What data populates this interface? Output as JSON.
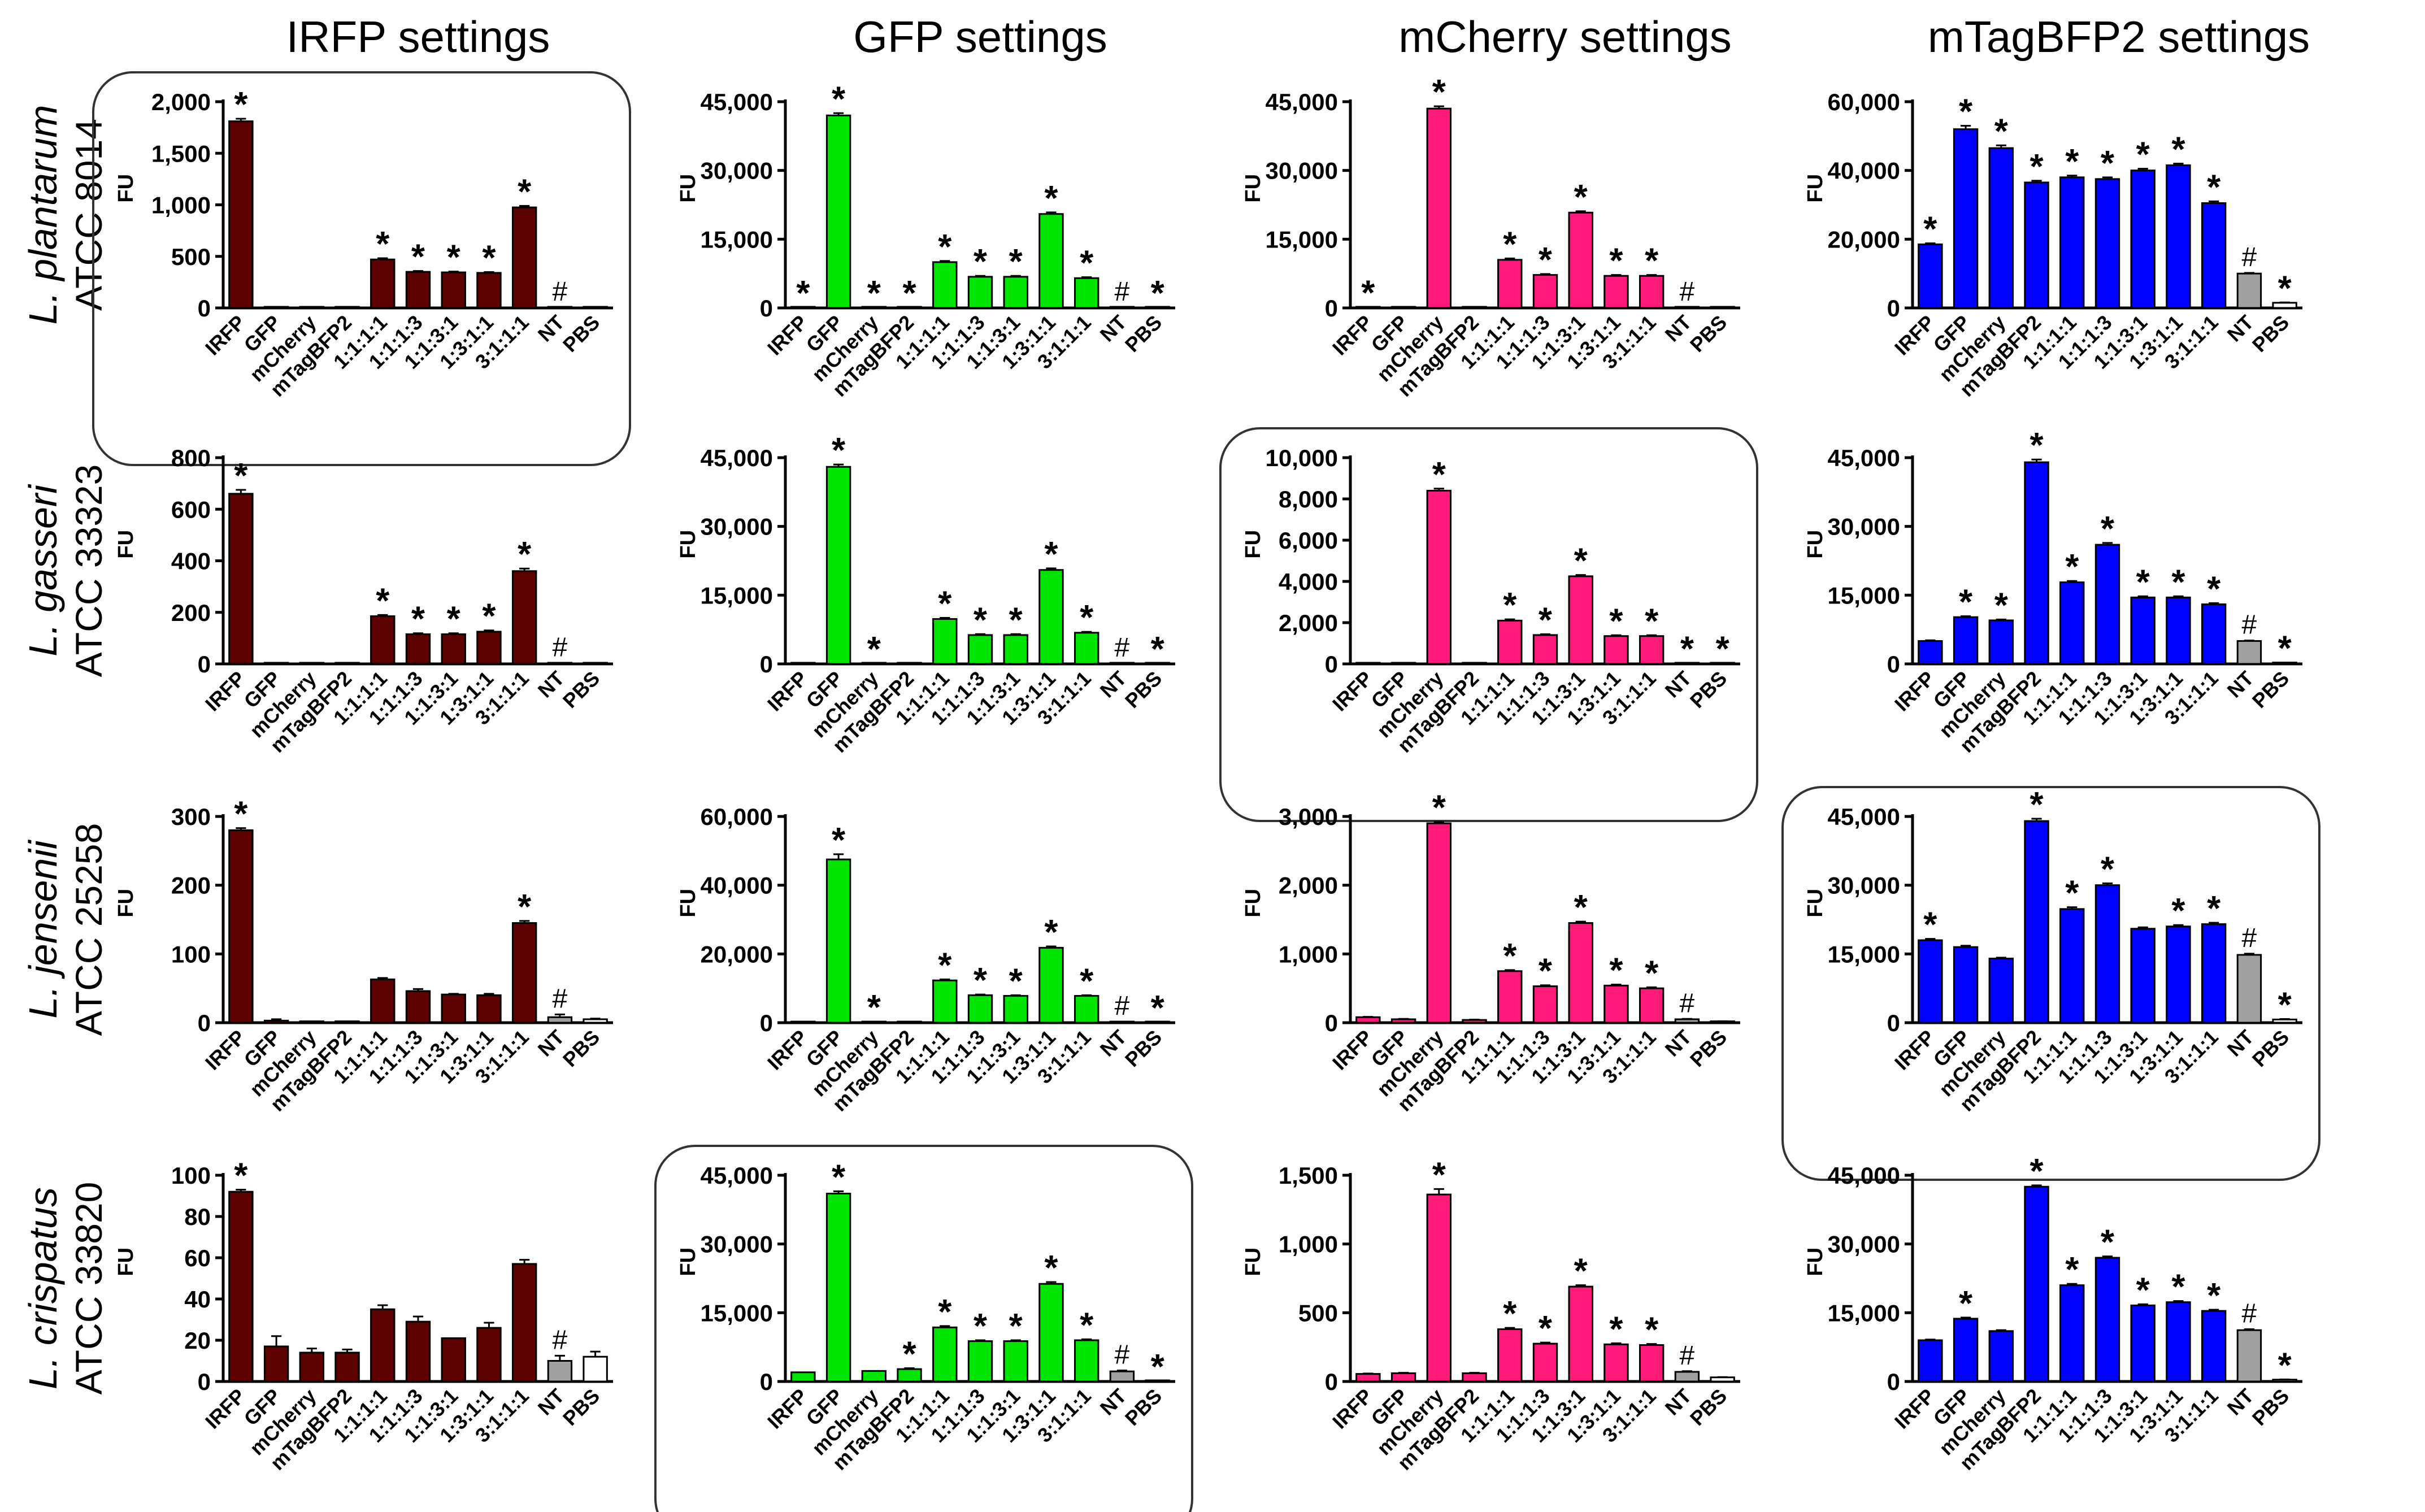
{
  "column_titles": [
    "IRFP settings",
    "GFP settings",
    "mCherry settings",
    "mTagBFP2 settings"
  ],
  "row_labels": [
    {
      "species": "L. plantarum",
      "strain": "ATCC 8014"
    },
    {
      "species": "L. gasseri",
      "strain": "ATCC 33323"
    },
    {
      "species": "L. jensenii",
      "strain": "ATCC 25258"
    },
    {
      "species": "L. crispatus",
      "strain": "ATCC 33820"
    }
  ],
  "colors": {
    "IRFP": "#5c0000",
    "GFP": "#00e400",
    "mCherry": "#ff1a7a",
    "mTagBFP2": "#0000ff",
    "NT": "#a0a0a0",
    "PBS": "#ffffff",
    "outline": "#000000"
  },
  "chart_data": [
    {
      "type": "bar",
      "title": "IRFP settings",
      "row": "L. plantarum ATCC 8014",
      "ylabel": "FU",
      "ylim": [
        0,
        2000
      ],
      "yticks": [
        "0",
        "500",
        "1,000",
        "1,500",
        "2,000"
      ],
      "categories": [
        "IRFP",
        "GFP",
        "mCherry",
        "mTagBFP2",
        "1:1:1:1",
        "1:1:1:3",
        "1:1:3:1",
        "1:3:1:1",
        "3:1:1:1",
        "NT",
        "PBS"
      ],
      "values": [
        1810,
        5,
        5,
        5,
        470,
        350,
        345,
        340,
        975,
        5,
        5
      ],
      "errors": [
        25,
        0,
        0,
        0,
        12,
        8,
        8,
        8,
        15,
        0,
        0
      ],
      "annotations": [
        "*",
        "",
        "",
        "",
        "*",
        "*",
        "*",
        "*",
        "*",
        "#",
        ""
      ],
      "highlighted": true
    },
    {
      "type": "bar",
      "title": "GFP settings",
      "row": "L. plantarum ATCC 8014",
      "ylabel": "FU",
      "ylim": [
        0,
        45000
      ],
      "yticks": [
        "0",
        "15,000",
        "30,000",
        "45,000"
      ],
      "categories": [
        "IRFP",
        "GFP",
        "mCherry",
        "mTagBFP2",
        "1:1:1:1",
        "1:1:1:3",
        "1:1:3:1",
        "1:3:1:1",
        "3:1:1:1",
        "NT",
        "PBS"
      ],
      "values": [
        150,
        42000,
        150,
        150,
        10000,
        6800,
        6800,
        20500,
        6500,
        150,
        150
      ],
      "errors": [
        0,
        500,
        0,
        0,
        250,
        200,
        200,
        350,
        200,
        0,
        0
      ],
      "annotations": [
        "*",
        "*",
        "*",
        "*",
        "*",
        "*",
        "*",
        "*",
        "*",
        "#",
        "*"
      ],
      "highlighted": false
    },
    {
      "type": "bar",
      "title": "mCherry settings",
      "row": "L. plantarum ATCC 8014",
      "ylabel": "FU",
      "ylim": [
        0,
        45000
      ],
      "yticks": [
        "0",
        "15,000",
        "30,000",
        "45,000"
      ],
      "categories": [
        "IRFP",
        "GFP",
        "mCherry",
        "mTagBFP2",
        "1:1:1:1",
        "1:1:1:3",
        "1:1:3:1",
        "1:3:1:1",
        "3:1:1:1",
        "NT",
        "PBS"
      ],
      "values": [
        200,
        150,
        43500,
        150,
        10500,
        7200,
        20800,
        7000,
        7000,
        150,
        150
      ],
      "errors": [
        0,
        0,
        500,
        0,
        300,
        200,
        300,
        200,
        200,
        0,
        0
      ],
      "annotations": [
        "*",
        "",
        "*",
        "",
        "*",
        "*",
        "*",
        "*",
        "*",
        "#",
        ""
      ],
      "highlighted": false
    },
    {
      "type": "bar",
      "title": "mTagBFP2 settings",
      "row": "L. plantarum ATCC 8014",
      "ylabel": "FU",
      "ylim": [
        0,
        60000
      ],
      "yticks": [
        "0",
        "20,000",
        "40,000",
        "60,000"
      ],
      "categories": [
        "IRFP",
        "GFP",
        "mCherry",
        "mTagBFP2",
        "1:1:1:1",
        "1:1:1:3",
        "1:1:3:1",
        "1:3:1:1",
        "3:1:1:1",
        "NT",
        "PBS"
      ],
      "values": [
        18500,
        52000,
        46500,
        36500,
        38000,
        37500,
        40000,
        41500,
        30500,
        10000,
        1500
      ],
      "errors": [
        300,
        1000,
        800,
        500,
        500,
        500,
        500,
        500,
        500,
        200,
        100
      ],
      "annotations": [
        "*",
        "*",
        "*",
        "*",
        "*",
        "*",
        "*",
        "*",
        "*",
        "#",
        "*"
      ],
      "highlighted": false
    },
    {
      "type": "bar",
      "title": "IRFP settings",
      "row": "L. gasseri ATCC 33323",
      "ylabel": "FU",
      "ylim": [
        0,
        800
      ],
      "yticks": [
        "0",
        "200",
        "400",
        "600",
        "800"
      ],
      "categories": [
        "IRFP",
        "GFP",
        "mCherry",
        "mTagBFP2",
        "1:1:1:1",
        "1:1:1:3",
        "1:1:3:1",
        "1:3:1:1",
        "3:1:1:1",
        "NT",
        "PBS"
      ],
      "values": [
        660,
        3,
        3,
        3,
        185,
        115,
        115,
        125,
        360,
        3,
        3
      ],
      "errors": [
        15,
        0,
        0,
        0,
        5,
        4,
        4,
        5,
        10,
        0,
        0
      ],
      "annotations": [
        "*",
        "",
        "",
        "",
        "*",
        "*",
        "*",
        "*",
        "*",
        "#",
        ""
      ],
      "highlighted": false
    },
    {
      "type": "bar",
      "title": "GFP settings",
      "row": "L. gasseri ATCC 33323",
      "ylabel": "FU",
      "ylim": [
        0,
        45000
      ],
      "yticks": [
        "0",
        "15,000",
        "30,000",
        "45,000"
      ],
      "categories": [
        "IRFP",
        "GFP",
        "mCherry",
        "mTagBFP2",
        "1:1:1:1",
        "1:1:1:3",
        "1:1:3:1",
        "1:3:1:1",
        "3:1:1:1",
        "NT",
        "PBS"
      ],
      "values": [
        150,
        43000,
        150,
        150,
        9800,
        6300,
        6300,
        20500,
        6800,
        150,
        150
      ],
      "errors": [
        0,
        500,
        0,
        0,
        250,
        200,
        200,
        350,
        200,
        0,
        0
      ],
      "annotations": [
        "",
        "*",
        "*",
        "",
        "*",
        "*",
        "*",
        "*",
        "*",
        "#",
        "*"
      ],
      "highlighted": false
    },
    {
      "type": "bar",
      "title": "mCherry settings",
      "row": "L. gasseri ATCC 33323",
      "ylabel": "FU",
      "ylim": [
        0,
        10000
      ],
      "yticks": [
        "0",
        "2,000",
        "4,000",
        "6,000",
        "8,000",
        "10,000"
      ],
      "categories": [
        "IRFP",
        "GFP",
        "mCherry",
        "mTagBFP2",
        "1:1:1:1",
        "1:1:1:3",
        "1:1:3:1",
        "1:3:1:1",
        "3:1:1:1",
        "NT",
        "PBS"
      ],
      "values": [
        40,
        40,
        8400,
        40,
        2100,
        1400,
        4250,
        1350,
        1350,
        40,
        40
      ],
      "errors": [
        0,
        0,
        100,
        0,
        60,
        40,
        60,
        40,
        40,
        0,
        0
      ],
      "annotations": [
        "",
        "",
        "*",
        "",
        "*",
        "*",
        "*",
        "*",
        "*",
        "*",
        "*"
      ],
      "highlighted": true
    },
    {
      "type": "bar",
      "title": "mTagBFP2 settings",
      "row": "L. gasseri ATCC 33323",
      "ylabel": "FU",
      "ylim": [
        0,
        45000
      ],
      "yticks": [
        "0",
        "15,000",
        "30,000",
        "45,000"
      ],
      "categories": [
        "IRFP",
        "GFP",
        "mCherry",
        "mTagBFP2",
        "1:1:1:1",
        "1:1:1:3",
        "1:1:3:1",
        "1:3:1:1",
        "3:1:1:1",
        "NT",
        "PBS"
      ],
      "values": [
        5000,
        10200,
        9500,
        44000,
        17800,
        26000,
        14500,
        14500,
        13000,
        5000,
        300
      ],
      "errors": [
        150,
        200,
        200,
        600,
        300,
        400,
        250,
        250,
        250,
        100,
        0
      ],
      "annotations": [
        "",
        "*",
        "*",
        "*",
        "*",
        "*",
        "*",
        "*",
        "*",
        "#",
        "*"
      ],
      "highlighted": false
    },
    {
      "type": "bar",
      "title": "IRFP settings",
      "row": "L. jensenii ATCC 25258",
      "ylabel": "FU",
      "ylim": [
        0,
        300
      ],
      "yticks": [
        "0",
        "100",
        "200",
        "300"
      ],
      "categories": [
        "IRFP",
        "GFP",
        "mCherry",
        "mTagBFP2",
        "1:1:1:1",
        "1:1:1:3",
        "1:1:3:1",
        "1:3:1:1",
        "3:1:1:1",
        "NT",
        "PBS"
      ],
      "values": [
        280,
        3,
        2,
        2,
        63,
        46,
        41,
        40,
        145,
        8,
        5
      ],
      "errors": [
        3,
        2,
        0,
        0,
        2,
        3,
        1,
        2,
        3,
        4,
        1
      ],
      "annotations": [
        "*",
        "",
        "",
        "",
        "",
        "",
        "",
        "",
        "*",
        "#",
        ""
      ],
      "highlighted": false
    },
    {
      "type": "bar",
      "title": "GFP settings",
      "row": "L. jensenii ATCC 25258",
      "ylabel": "FU",
      "ylim": [
        0,
        60000
      ],
      "yticks": [
        "0",
        "20,000",
        "40,000",
        "60,000"
      ],
      "categories": [
        "IRFP",
        "GFP",
        "mCherry",
        "mTagBFP2",
        "1:1:1:1",
        "1:1:1:3",
        "1:1:3:1",
        "1:3:1:1",
        "3:1:1:1",
        "NT",
        "PBS"
      ],
      "values": [
        300,
        47500,
        300,
        300,
        12300,
        8000,
        7800,
        21800,
        7800,
        300,
        200
      ],
      "errors": [
        0,
        1500,
        0,
        0,
        300,
        200,
        200,
        400,
        200,
        0,
        0
      ],
      "annotations": [
        "",
        "*",
        "*",
        "",
        "*",
        "*",
        "*",
        "*",
        "*",
        "#",
        "*"
      ],
      "highlighted": false
    },
    {
      "type": "bar",
      "title": "mCherry settings",
      "row": "L. jensenii ATCC 25258",
      "ylabel": "FU",
      "ylim": [
        0,
        3000
      ],
      "yticks": [
        "0",
        "1,000",
        "2,000",
        "3,000"
      ],
      "categories": [
        "IRFP",
        "GFP",
        "mCherry",
        "mTagBFP2",
        "1:1:1:1",
        "1:1:1:3",
        "1:1:3:1",
        "1:3:1:1",
        "3:1:1:1",
        "NT",
        "PBS"
      ],
      "values": [
        80,
        50,
        2900,
        40,
        750,
        530,
        1450,
        540,
        500,
        50,
        20
      ],
      "errors": [
        5,
        5,
        20,
        5,
        15,
        15,
        20,
        15,
        15,
        5,
        2
      ],
      "annotations": [
        "",
        "",
        "*",
        "",
        "*",
        "*",
        "*",
        "*",
        "*",
        "#",
        ""
      ],
      "highlighted": false
    },
    {
      "type": "bar",
      "title": "mTagBFP2 settings",
      "row": "L. jensenii ATCC 25258",
      "ylabel": "FU",
      "ylim": [
        0,
        45000
      ],
      "yticks": [
        "0",
        "15,000",
        "30,000",
        "45,000"
      ],
      "categories": [
        "IRFP",
        "GFP",
        "mCherry",
        "mTagBFP2",
        "1:1:1:1",
        "1:1:1:3",
        "1:1:3:1",
        "1:3:1:1",
        "3:1:1:1",
        "NT",
        "PBS"
      ],
      "values": [
        18000,
        16500,
        14000,
        44000,
        24800,
        30000,
        20500,
        21000,
        21500,
        14800,
        700
      ],
      "errors": [
        300,
        300,
        200,
        500,
        400,
        400,
        300,
        300,
        300,
        250,
        100
      ],
      "annotations": [
        "*",
        "",
        "",
        "*",
        "*",
        "*",
        "",
        "*",
        "*",
        "#",
        "*"
      ],
      "highlighted": true
    },
    {
      "type": "bar",
      "title": "IRFP settings",
      "row": "L. crispatus ATCC 33820",
      "ylabel": "FU",
      "ylim": [
        0,
        100
      ],
      "yticks": [
        "0",
        "20",
        "40",
        "60",
        "80",
        "100"
      ],
      "categories": [
        "IRFP",
        "GFP",
        "mCherry",
        "mTagBFP2",
        "1:1:1:1",
        "1:1:1:3",
        "1:1:3:1",
        "1:3:1:1",
        "3:1:1:1",
        "NT",
        "PBS"
      ],
      "values": [
        92,
        17,
        14,
        14,
        35,
        29,
        21,
        26,
        57,
        10,
        12
      ],
      "errors": [
        1,
        5,
        2,
        1.5,
        2,
        2.5,
        0,
        2.5,
        2,
        2.5,
        2.5
      ],
      "annotations": [
        "*",
        "",
        "",
        "",
        "",
        "",
        "",
        "",
        "",
        "#",
        ""
      ],
      "highlighted": false
    },
    {
      "type": "bar",
      "title": "GFP settings",
      "row": "L. crispatus ATCC 33820",
      "ylabel": "FU",
      "ylim": [
        0,
        45000
      ],
      "yticks": [
        "0",
        "15,000",
        "30,000",
        "45,000"
      ],
      "categories": [
        "IRFP",
        "GFP",
        "mCherry",
        "mTagBFP2",
        "1:1:1:1",
        "1:1:1:3",
        "1:1:3:1",
        "1:3:1:1",
        "3:1:1:1",
        "NT",
        "PBS"
      ],
      "values": [
        2000,
        41000,
        2300,
        2700,
        11800,
        8800,
        8800,
        21300,
        9000,
        2200,
        100
      ],
      "errors": [
        0,
        500,
        0,
        200,
        300,
        200,
        200,
        400,
        200,
        200,
        0
      ],
      "annotations": [
        "",
        "*",
        "",
        "*",
        "*",
        "*",
        "*",
        "*",
        "*",
        "#",
        "*"
      ],
      "highlighted": true
    },
    {
      "type": "bar",
      "title": "mCherry settings",
      "row": "L. crispatus ATCC 33820",
      "ylabel": "FU",
      "ylim": [
        0,
        1500
      ],
      "yticks": [
        "0",
        "500",
        "1,000",
        "1,500"
      ],
      "categories": [
        "IRFP",
        "GFP",
        "mCherry",
        "mTagBFP2",
        "1:1:1:1",
        "1:1:1:3",
        "1:1:3:1",
        "1:3:1:1",
        "3:1:1:1",
        "NT",
        "PBS"
      ],
      "values": [
        55,
        60,
        1360,
        60,
        380,
        275,
        690,
        270,
        265,
        70,
        30
      ],
      "errors": [
        3,
        3,
        40,
        3,
        10,
        8,
        10,
        8,
        8,
        5,
        2
      ],
      "annotations": [
        "",
        "",
        "*",
        "",
        "*",
        "*",
        "*",
        "*",
        "*",
        "#",
        ""
      ],
      "highlighted": false
    },
    {
      "type": "bar",
      "title": "mTagBFP2 settings",
      "row": "L. crispatus ATCC 33820",
      "ylabel": "FU",
      "ylim": [
        0,
        45000
      ],
      "yticks": [
        "0",
        "15,000",
        "30,000",
        "45,000"
      ],
      "categories": [
        "IRFP",
        "GFP",
        "mCherry",
        "mTagBFP2",
        "1:1:1:1",
        "1:1:1:3",
        "1:1:3:1",
        "1:3:1:1",
        "3:1:1:1",
        "NT",
        "PBS"
      ],
      "values": [
        9000,
        13700,
        11000,
        42500,
        21000,
        27000,
        16600,
        17300,
        15400,
        11200,
        400
      ],
      "errors": [
        150,
        250,
        200,
        300,
        300,
        300,
        250,
        250,
        250,
        200,
        50
      ],
      "annotations": [
        "",
        "*",
        "",
        "*",
        "*",
        "*",
        "*",
        "*",
        "*",
        "#",
        "*"
      ],
      "highlighted": false
    }
  ]
}
